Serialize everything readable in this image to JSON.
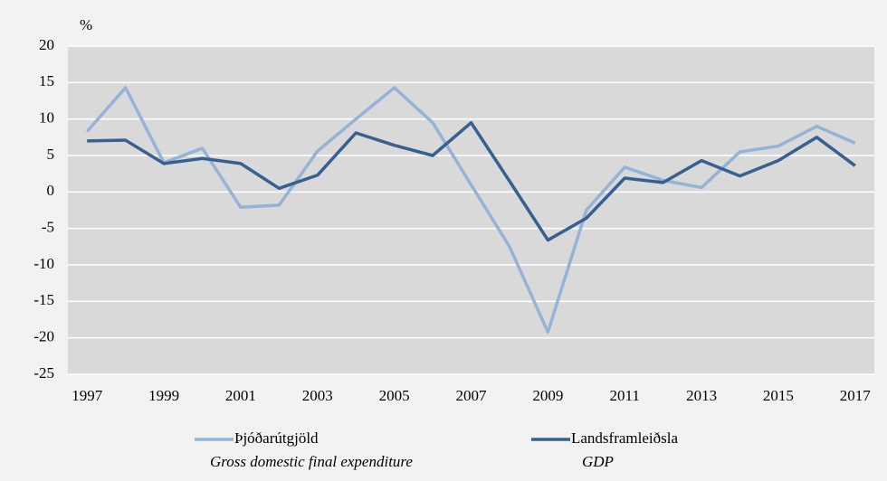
{
  "chart_data": {
    "type": "line",
    "ylabel": "%",
    "x": [
      1997,
      1998,
      1999,
      2000,
      2001,
      2002,
      2003,
      2004,
      2005,
      2006,
      2007,
      2008,
      2009,
      2010,
      2011,
      2012,
      2013,
      2014,
      2015,
      2016,
      2017
    ],
    "xlim": [
      1996.5,
      2017.5
    ],
    "xticks": [
      1997,
      1999,
      2001,
      2003,
      2005,
      2007,
      2009,
      2011,
      2013,
      2015,
      2017
    ],
    "ylim": [
      -25,
      20
    ],
    "yticks": [
      -25,
      -20,
      -15,
      -10,
      -5,
      0,
      5,
      10,
      15,
      20
    ],
    "grid": true,
    "series": [
      {
        "name": "Þjóðarútgjöld",
        "legend_subtitle": "Gross domestic final expenditure",
        "color": "#95b3d7",
        "values": [
          8.3,
          14.3,
          4.0,
          6.0,
          -2.1,
          -1.8,
          5.6,
          10.0,
          14.3,
          9.5,
          1.0,
          -7.5,
          -19.2,
          -2.5,
          3.4,
          1.6,
          0.6,
          5.5,
          6.3,
          9.0,
          6.7
        ]
      },
      {
        "name": "Landsframleiðsla",
        "legend_subtitle": "GDP",
        "color": "#376092",
        "values": [
          7.0,
          7.1,
          3.9,
          4.6,
          3.9,
          0.5,
          2.3,
          8.1,
          6.4,
          5.0,
          9.5,
          1.5,
          -6.6,
          -3.6,
          1.9,
          1.3,
          4.3,
          2.2,
          4.3,
          7.5,
          3.6
        ]
      }
    ]
  }
}
